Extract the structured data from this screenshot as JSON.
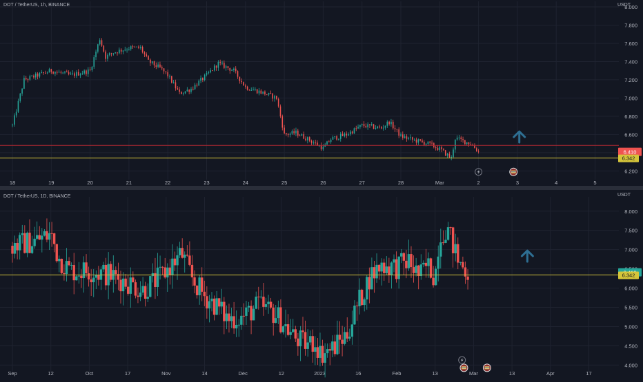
{
  "theme": {
    "background": "#131722",
    "grid": "#1f2330",
    "divider": "#2a2e39",
    "text": "#b2b5be",
    "up": "#26a69a",
    "down": "#ef5350",
    "level_line": "#d4c43a",
    "red_line": "#b22833",
    "arrow": "#2e6f93"
  },
  "chart_data": [
    {
      "type": "candlestick",
      "title": "DOT / TetherUS, 1h, BINANCE",
      "price_unit": "USDT",
      "y_ticks": [
        "6.200",
        "6.400",
        "6.600",
        "6.800",
        "7.000",
        "7.200",
        "7.400",
        "7.600",
        "7.800",
        "8.000"
      ],
      "x_ticks": [
        "18",
        "19",
        "20",
        "21",
        "22",
        "23",
        "24",
        "25",
        "26",
        "27",
        "28",
        "Mar",
        "2",
        "3",
        "4",
        "5"
      ],
      "ylim": [
        6.15,
        8.03
      ],
      "horizontal_line": 6.342,
      "horizontal_line_label": "6.342",
      "red_line": 6.48,
      "current_price_label": "6.410",
      "current_price": 6.41,
      "close_path": [
        {
          "x": 0,
          "v": 6.7
        },
        {
          "x": 0.3,
          "v": 7.2
        },
        {
          "x": 1,
          "v": 7.3
        },
        {
          "x": 1.5,
          "v": 7.25
        },
        {
          "x": 2,
          "v": 7.3
        },
        {
          "x": 2.25,
          "v": 7.65
        },
        {
          "x": 2.4,
          "v": 7.45
        },
        {
          "x": 2.6,
          "v": 7.5
        },
        {
          "x": 3,
          "v": 7.55
        },
        {
          "x": 3.3,
          "v": 7.55
        },
        {
          "x": 3.5,
          "v": 7.4
        },
        {
          "x": 3.8,
          "v": 7.33
        },
        {
          "x": 4,
          "v": 7.25
        },
        {
          "x": 4.3,
          "v": 7.05
        },
        {
          "x": 4.6,
          "v": 7.1
        },
        {
          "x": 5,
          "v": 7.25
        },
        {
          "x": 5.3,
          "v": 7.38
        },
        {
          "x": 5.7,
          "v": 7.3
        },
        {
          "x": 6,
          "v": 7.12
        },
        {
          "x": 6.5,
          "v": 7.05
        },
        {
          "x": 6.8,
          "v": 7.0
        },
        {
          "x": 7,
          "v": 6.6
        },
        {
          "x": 7.3,
          "v": 6.62
        },
        {
          "x": 7.6,
          "v": 6.55
        },
        {
          "x": 8,
          "v": 6.45
        },
        {
          "x": 8.2,
          "v": 6.55
        },
        {
          "x": 8.6,
          "v": 6.6
        },
        {
          "x": 9,
          "v": 6.7
        },
        {
          "x": 9.5,
          "v": 6.67
        },
        {
          "x": 9.7,
          "v": 6.74
        },
        {
          "x": 10,
          "v": 6.58
        },
        {
          "x": 10.4,
          "v": 6.53
        },
        {
          "x": 10.7,
          "v": 6.5
        },
        {
          "x": 11,
          "v": 6.44
        },
        {
          "x": 11.3,
          "v": 6.34
        },
        {
          "x": 11.4,
          "v": 6.56
        },
        {
          "x": 11.8,
          "v": 6.5
        },
        {
          "x": 12,
          "v": 6.41
        }
      ],
      "badges": [
        {
          "x": 12.0,
          "v": 6.19,
          "icon": "lightning-icon"
        },
        {
          "x": 12.9,
          "v": 6.19,
          "icon": "earnings-flag-icon"
        }
      ],
      "arrow": {
        "x": 13.05,
        "v": 6.58
      }
    },
    {
      "type": "candlestick",
      "title": "DOT / TetherUS, 1D, BINANCE",
      "price_unit": "USDT",
      "y_ticks": [
        "4.000",
        "4.500",
        "5.000",
        "5.500",
        "6.000",
        "6.500",
        "7.000",
        "7.500",
        "8.000"
      ],
      "x_ticks": [
        "Sep",
        "12",
        "Oct",
        "17",
        "Nov",
        "14",
        "Dec",
        "12",
        "2023",
        "16",
        "Feb",
        "13",
        "Mar",
        "13",
        "Apr",
        "17"
      ],
      "ylim": [
        3.9,
        8.3
      ],
      "horizontal_line": 6.342,
      "horizontal_line_label": "6.342",
      "current_price_label": "6.410",
      "current_price": 6.41,
      "close_path": [
        {
          "x": 0,
          "v": 7.1
        },
        {
          "x": 0.5,
          "v": 7.2
        },
        {
          "x": 1,
          "v": 7.4
        },
        {
          "x": 1.2,
          "v": 6.8
        },
        {
          "x": 1.5,
          "v": 6.45
        },
        {
          "x": 2,
          "v": 6.45
        },
        {
          "x": 2.5,
          "v": 6.35
        },
        {
          "x": 3,
          "v": 6.15
        },
        {
          "x": 3.4,
          "v": 5.95
        },
        {
          "x": 3.8,
          "v": 6.25
        },
        {
          "x": 4,
          "v": 6.45
        },
        {
          "x": 4.4,
          "v": 6.9
        },
        {
          "x": 4.7,
          "v": 6.2
        },
        {
          "x": 5,
          "v": 5.8
        },
        {
          "x": 5.3,
          "v": 5.55
        },
        {
          "x": 5.6,
          "v": 5.2
        },
        {
          "x": 6,
          "v": 5.25
        },
        {
          "x": 6.4,
          "v": 5.55
        },
        {
          "x": 6.8,
          "v": 5.35
        },
        {
          "x": 7,
          "v": 5.15
        },
        {
          "x": 7.3,
          "v": 4.75
        },
        {
          "x": 7.6,
          "v": 4.55
        },
        {
          "x": 7.9,
          "v": 4.6
        },
        {
          "x": 8,
          "v": 4.3
        },
        {
          "x": 8.3,
          "v": 4.4
        },
        {
          "x": 8.7,
          "v": 4.8
        },
        {
          "x": 9,
          "v": 5.6
        },
        {
          "x": 9.3,
          "v": 6.3
        },
        {
          "x": 9.6,
          "v": 6.6
        },
        {
          "x": 10,
          "v": 6.55
        },
        {
          "x": 10.3,
          "v": 6.7
        },
        {
          "x": 10.6,
          "v": 6.3
        },
        {
          "x": 10.8,
          "v": 6.6
        },
        {
          "x": 11,
          "v": 6.3
        },
        {
          "x": 11.1,
          "v": 7.3
        },
        {
          "x": 11.3,
          "v": 7.6
        },
        {
          "x": 11.6,
          "v": 6.7
        },
        {
          "x": 11.85,
          "v": 6.41
        }
      ],
      "badges": [
        {
          "x": 11.7,
          "v": 4.13,
          "icon": "lightning-icon"
        },
        {
          "x": 11.75,
          "v": 3.93,
          "icon": "earnings-flag-icon"
        },
        {
          "x": 12.35,
          "v": 3.93,
          "icon": "earnings-flag-icon"
        }
      ],
      "arrow": {
        "x": 13.4,
        "v": 6.85
      }
    }
  ]
}
